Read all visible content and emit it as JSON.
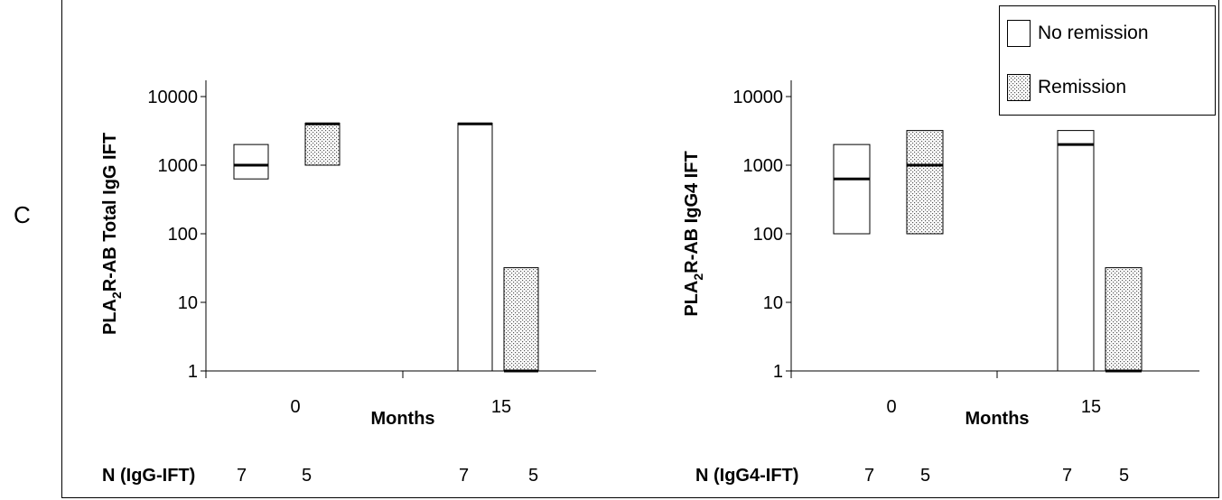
{
  "panel_label": "C",
  "legend": {
    "items": [
      {
        "label": "No remission",
        "fill": "#ffffff"
      },
      {
        "label": "Remission",
        "fill": "pattern"
      }
    ]
  },
  "chart_data": [
    {
      "type": "box",
      "ylabel_main": "PLA",
      "ylabel_sub": "2",
      "ylabel_rest": "R-AB Total IgG IFT",
      "xlabel": "Months",
      "yscale": "log",
      "ylim": [
        1,
        10000
      ],
      "yticks": [
        "1",
        "10",
        "100",
        "1000",
        "10000"
      ],
      "categories": [
        "0",
        "15"
      ],
      "series": [
        {
          "name": "No remission",
          "boxes": [
            {
              "category": "0",
              "low": 630,
              "high": 2000,
              "median": 1000
            },
            {
              "category": "15",
              "low": 1,
              "high": 4100,
              "median": 4000
            }
          ]
        },
        {
          "name": "Remission",
          "boxes": [
            {
              "category": "0",
              "low": 1000,
              "high": 4100,
              "median": 4000
            },
            {
              "category": "15",
              "low": 1,
              "high": 32,
              "median": 1
            }
          ]
        }
      ],
      "n_row": {
        "label": "N (IgG-IFT)",
        "values": [
          "7",
          "5",
          "7",
          "5"
        ]
      }
    },
    {
      "type": "box",
      "ylabel_main": "PLA",
      "ylabel_sub": "2",
      "ylabel_rest": "R-AB IgG4 IFT",
      "xlabel": "Months",
      "yscale": "log",
      "ylim": [
        1,
        10000
      ],
      "yticks": [
        "1",
        "10",
        "100",
        "1000",
        "10000"
      ],
      "categories": [
        "0",
        "15"
      ],
      "series": [
        {
          "name": "No remission",
          "boxes": [
            {
              "category": "0",
              "low": 100,
              "high": 2000,
              "median": 630
            },
            {
              "category": "15",
              "low": 1,
              "high": 3200,
              "median": 2000
            }
          ]
        },
        {
          "name": "Remission",
          "boxes": [
            {
              "category": "0",
              "low": 100,
              "high": 3200,
              "median": 1000
            },
            {
              "category": "15",
              "low": 1,
              "high": 32,
              "median": 1
            }
          ]
        }
      ],
      "n_row": {
        "label": "N (IgG4-IFT)",
        "values": [
          "7",
          "5",
          "7",
          "5"
        ]
      }
    }
  ]
}
